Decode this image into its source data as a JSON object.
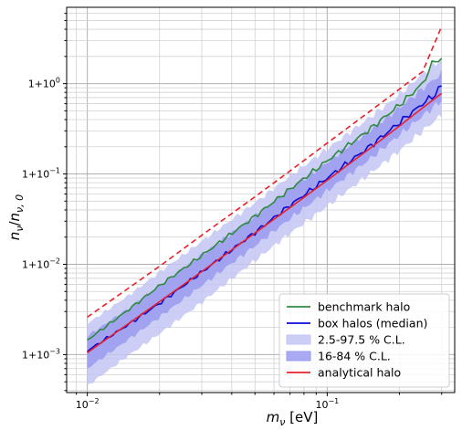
{
  "chart_data": {
    "type": "line",
    "xscale": "log",
    "yscale": "log",
    "xlim": [
      0.0082,
      0.34
    ],
    "ylim": [
      0.00038,
      7.0
    ],
    "grid": "both, major and minor",
    "xlabel": "m_ν [eV]",
    "ylabel": "n_ν/n_ν,0",
    "x_ticks": [
      {
        "value": 0.01,
        "label": "10",
        "exp": "−2"
      },
      {
        "value": 0.1,
        "label": "10",
        "exp": "−1"
      }
    ],
    "y_ticks": [
      {
        "value": 0.001,
        "label": "1+10",
        "exp": "−3"
      },
      {
        "value": 0.01,
        "label": "1+10",
        "exp": "−2"
      },
      {
        "value": 0.1,
        "label": "1+10",
        "exp": "−1"
      },
      {
        "value": 1.0,
        "label": "1+10",
        "exp": "0"
      }
    ],
    "legend_position": "lower right",
    "colors": {
      "benchmark": "#2e8b3e",
      "box": "#0a0ad8",
      "band95": "#c3c6f4",
      "band68": "#9a9bee",
      "analytical": "#e8202a",
      "dashed": "#e8202a"
    },
    "series": [
      {
        "name": "benchmark halo",
        "style": "line",
        "color_key": "benchmark",
        "points": [
          [
            0.01,
            0.00145
          ],
          [
            0.015,
            0.0032
          ],
          [
            0.02,
            0.0058
          ],
          [
            0.03,
            0.0125
          ],
          [
            0.05,
            0.034
          ],
          [
            0.07,
            0.068
          ],
          [
            0.1,
            0.14
          ],
          [
            0.15,
            0.31
          ],
          [
            0.2,
            0.58
          ],
          [
            0.25,
            1.0
          ],
          [
            0.28,
            1.85
          ],
          [
            0.3,
            1.8
          ]
        ]
      },
      {
        "name": "box halos (median)",
        "style": "line",
        "color_key": "box",
        "points": [
          [
            0.01,
            0.0011
          ],
          [
            0.015,
            0.0022
          ],
          [
            0.02,
            0.0037
          ],
          [
            0.03,
            0.0082
          ],
          [
            0.05,
            0.0225
          ],
          [
            0.07,
            0.045
          ],
          [
            0.1,
            0.09
          ],
          [
            0.15,
            0.2
          ],
          [
            0.2,
            0.37
          ],
          [
            0.25,
            0.6
          ],
          [
            0.28,
            0.75
          ],
          [
            0.3,
            0.95
          ]
        ]
      },
      {
        "name": "2.5-97.5 % C.L.",
        "style": "band",
        "color_key": "band95",
        "lower": [
          [
            0.01,
            0.00045
          ],
          [
            0.015,
            0.001
          ],
          [
            0.02,
            0.0017
          ],
          [
            0.03,
            0.0038
          ],
          [
            0.05,
            0.011
          ],
          [
            0.07,
            0.022
          ],
          [
            0.1,
            0.044
          ],
          [
            0.15,
            0.1
          ],
          [
            0.2,
            0.18
          ],
          [
            0.25,
            0.3
          ],
          [
            0.3,
            0.45
          ]
        ],
        "upper": [
          [
            0.01,
            0.0022
          ],
          [
            0.015,
            0.0046
          ],
          [
            0.02,
            0.0082
          ],
          [
            0.03,
            0.018
          ],
          [
            0.05,
            0.048
          ],
          [
            0.07,
            0.095
          ],
          [
            0.1,
            0.19
          ],
          [
            0.15,
            0.42
          ],
          [
            0.2,
            0.75
          ],
          [
            0.25,
            1.3
          ],
          [
            0.3,
            1.9
          ]
        ]
      },
      {
        "name": "16-84 % C.L.",
        "style": "band",
        "color_key": "band68",
        "lower": [
          [
            0.01,
            0.0007
          ],
          [
            0.015,
            0.0015
          ],
          [
            0.02,
            0.0026
          ],
          [
            0.03,
            0.0058
          ],
          [
            0.05,
            0.016
          ],
          [
            0.07,
            0.032
          ],
          [
            0.1,
            0.065
          ],
          [
            0.15,
            0.145
          ],
          [
            0.2,
            0.27
          ],
          [
            0.25,
            0.44
          ],
          [
            0.3,
            0.65
          ]
        ],
        "upper": [
          [
            0.01,
            0.0016
          ],
          [
            0.015,
            0.0033
          ],
          [
            0.02,
            0.0058
          ],
          [
            0.03,
            0.0128
          ],
          [
            0.05,
            0.034
          ],
          [
            0.07,
            0.068
          ],
          [
            0.1,
            0.135
          ],
          [
            0.15,
            0.3
          ],
          [
            0.2,
            0.54
          ],
          [
            0.25,
            0.88
          ],
          [
            0.3,
            1.3
          ]
        ]
      },
      {
        "name": "analytical halo",
        "style": "line",
        "color_key": "analytical",
        "points": [
          [
            0.01,
            0.00105
          ],
          [
            0.02,
            0.00385
          ],
          [
            0.03,
            0.0083
          ],
          [
            0.05,
            0.0222
          ],
          [
            0.07,
            0.0425
          ],
          [
            0.1,
            0.085
          ],
          [
            0.15,
            0.19
          ],
          [
            0.2,
            0.34
          ],
          [
            0.25,
            0.54
          ],
          [
            0.3,
            0.78
          ]
        ]
      },
      {
        "style": "dashed",
        "color_key": "dashed",
        "points": [
          [
            0.01,
            0.0026
          ],
          [
            0.02,
            0.0095
          ],
          [
            0.03,
            0.021
          ],
          [
            0.05,
            0.056
          ],
          [
            0.07,
            0.108
          ],
          [
            0.1,
            0.22
          ],
          [
            0.15,
            0.49
          ],
          [
            0.2,
            0.87
          ],
          [
            0.25,
            1.36
          ],
          [
            0.3,
            4.3
          ]
        ]
      }
    ]
  }
}
